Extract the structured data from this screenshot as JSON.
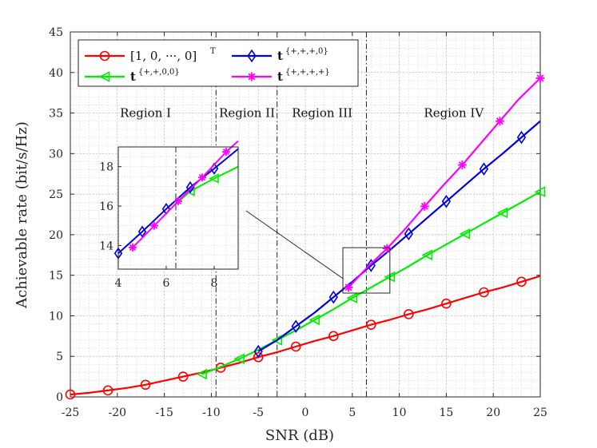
{
  "chart_data": {
    "type": "line",
    "xlabel": "SNR (dB)",
    "ylabel": "Achievable rate (bit/s/Hz)",
    "xlim": [
      -25,
      25
    ],
    "ylim": [
      0,
      45
    ],
    "xticks": [
      "-25",
      "-20",
      "-15",
      "-10",
      "-5",
      "0",
      "5",
      "10",
      "15",
      "20",
      "25"
    ],
    "xtick_values": [
      -25,
      -20,
      -15,
      -10,
      -5,
      0,
      5,
      10,
      15,
      20,
      25
    ],
    "yticks": [
      "0",
      "5",
      "10",
      "15",
      "20",
      "25",
      "30",
      "35",
      "40",
      "45"
    ],
    "ytick_values": [
      0,
      5,
      10,
      15,
      20,
      25,
      30,
      35,
      40,
      45
    ],
    "grid": true,
    "legend_position": "top-left",
    "series": [
      {
        "name": "[1, 0, ···, 0]",
        "name_sup": "T",
        "color": "#ff0000",
        "marker": "circle",
        "x": [
          -25,
          -23,
          -21,
          -19,
          -17,
          -15,
          -13,
          -11,
          -9,
          -7,
          -5,
          -3,
          -1,
          1,
          3,
          5,
          7,
          9,
          11,
          13,
          15,
          17,
          19,
          21,
          23,
          25
        ],
        "y": [
          0.3,
          0.5,
          0.8,
          1.1,
          1.5,
          2.0,
          2.5,
          3.0,
          3.6,
          4.2,
          4.9,
          5.5,
          6.2,
          6.9,
          7.5,
          8.2,
          8.9,
          9.5,
          10.2,
          10.8,
          11.5,
          12.2,
          12.9,
          13.5,
          14.2,
          14.9
        ],
        "marker_x": [
          -25,
          -21,
          -17,
          -13,
          -9,
          -5,
          -1,
          3,
          7,
          11,
          15,
          19,
          23
        ],
        "marker_y": [
          0.3,
          0.8,
          1.5,
          2.5,
          3.6,
          4.9,
          6.2,
          7.5,
          8.9,
          10.2,
          11.5,
          12.9,
          14.2
        ]
      },
      {
        "name": "t",
        "name_sup": "{+,+,0,0}",
        "color": "#00ee00",
        "marker": "triangle-left",
        "x": [
          -11,
          -9,
          -7,
          -5,
          -3,
          -1,
          1,
          3,
          5,
          7,
          9,
          11,
          13,
          15,
          17,
          19,
          21,
          23,
          25
        ],
        "y": [
          2.8,
          3.7,
          4.7,
          5.8,
          7.0,
          8.2,
          9.5,
          10.8,
          12.2,
          13.5,
          14.8,
          16.1,
          17.5,
          18.8,
          20.1,
          21.4,
          22.7,
          24.0,
          25.3
        ],
        "marker_x": [
          -11,
          -7,
          -3,
          1,
          5,
          9,
          13,
          17,
          21,
          25
        ],
        "marker_y": [
          2.8,
          4.7,
          7.0,
          9.5,
          12.2,
          14.8,
          17.5,
          20.1,
          22.7,
          25.3
        ]
      },
      {
        "name": "t",
        "name_sup": "{+,+,+,0}",
        "color": "#0000dd",
        "marker": "diamond",
        "x": [
          -5,
          -3,
          -1,
          1,
          3,
          5,
          7,
          9,
          11,
          13,
          15,
          17,
          19,
          21,
          23,
          25
        ],
        "y": [
          5.6,
          7.0,
          8.7,
          10.4,
          12.3,
          14.2,
          16.2,
          18.1,
          20.1,
          22.1,
          24.1,
          26.1,
          28.1,
          30.0,
          32.0,
          34.0
        ],
        "marker_x": [
          -5,
          -1,
          3,
          7,
          11,
          15,
          19,
          23
        ],
        "marker_y": [
          5.6,
          8.7,
          12.3,
          16.2,
          20.1,
          24.1,
          28.1,
          32.0
        ]
      },
      {
        "name": "t",
        "name_sup": "{+,+,+,+}",
        "color": "#ff00ff",
        "marker": "asterisk",
        "x": [
          4.6,
          6.7,
          8.7,
          10.7,
          12.7,
          14.7,
          16.7,
          18.7,
          20.7,
          22.7,
          25
        ],
        "y": [
          13.5,
          16.1,
          18.3,
          20.8,
          23.5,
          26.1,
          28.6,
          31.3,
          34.0,
          36.7,
          39.3
        ],
        "marker_x": [
          4.6,
          8.7,
          12.7,
          16.7,
          20.7,
          25
        ],
        "marker_y": [
          13.5,
          18.3,
          23.5,
          28.6,
          34.0,
          39.3
        ]
      }
    ],
    "region_boundaries": [
      -9.5,
      -3,
      6.5
    ],
    "regions": [
      "Region I",
      "Region II",
      "Region III",
      "Region IV"
    ],
    "region_centers": [
      -17,
      -6.2,
      1.8,
      15.8
    ],
    "region_label_y": 35,
    "inset": {
      "xlim": [
        4,
        9
      ],
      "ylim": [
        12.8,
        19
      ],
      "xticks": [
        "4",
        "6",
        "8"
      ],
      "xtick_values": [
        4,
        6,
        8
      ],
      "yticks": [
        "14",
        "16",
        "18"
      ],
      "ytick_values": [
        14,
        16,
        18
      ],
      "zoom_box": {
        "x": [
          4,
          9
        ],
        "y": [
          12.8,
          18.4
        ]
      },
      "boundary": 6.4,
      "series": [
        {
          "color": "#00ee00",
          "marker": "triangle-left",
          "x": [
            6.4,
            7,
            8,
            9
          ],
          "y": [
            16.1,
            16.75,
            17.4,
            18.0
          ],
          "marker_x": [
            7,
            8
          ],
          "marker_y": [
            16.75,
            17.4
          ]
        },
        {
          "color": "#0000dd",
          "marker": "diamond",
          "x": [
            4,
            5,
            6,
            7,
            8,
            9
          ],
          "y": [
            13.6,
            14.7,
            15.85,
            16.95,
            17.9,
            18.9
          ],
          "marker_x": [
            4,
            5,
            6,
            7,
            8
          ],
          "marker_y": [
            13.6,
            14.7,
            15.85,
            16.95,
            17.9
          ]
        },
        {
          "color": "#ff00ff",
          "marker": "asterisk",
          "x": [
            4.6,
            5.5,
            6.5,
            7.5,
            8.5,
            9
          ],
          "y": [
            13.9,
            15.0,
            16.25,
            17.45,
            18.75,
            19.3
          ],
          "marker_x": [
            4.6,
            5.5,
            6.5,
            7.5,
            8.5
          ],
          "marker_y": [
            13.9,
            15.0,
            16.25,
            17.45,
            18.75
          ]
        }
      ]
    }
  }
}
